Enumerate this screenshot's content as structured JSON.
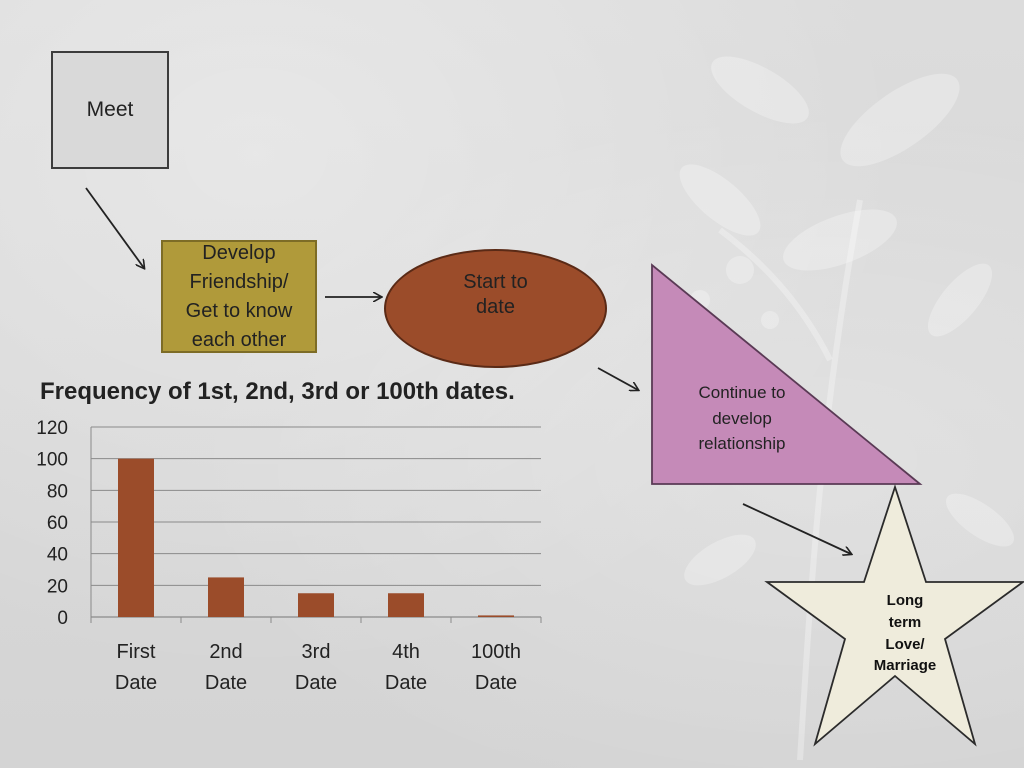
{
  "diagram": {
    "meet": "Meet",
    "friendship": [
      "Develop",
      "Friendship/",
      "Get to know",
      "each other"
    ],
    "start_date": [
      "Start to",
      "date"
    ],
    "continue": [
      "Continue to",
      "develop",
      "relationship"
    ],
    "long_term": [
      "Long",
      "term",
      "Love/",
      "Marriage"
    ]
  },
  "colors": {
    "meet_fill": "#d9d9d9",
    "friendship_fill": "#b09a3a",
    "date_fill": "#9b4c2a",
    "triangle_fill": "#c58ab8",
    "star_fill": "#efecdc",
    "bar_fill": "#9b4c2a"
  },
  "chart_data": {
    "type": "bar",
    "title": "Frequency of 1st, 2nd, 3rd or 100th dates.",
    "categories": [
      [
        "First",
        "Date"
      ],
      [
        "2nd",
        "Date"
      ],
      [
        "3rd",
        "Date"
      ],
      [
        "4th",
        "Date"
      ],
      [
        "100th",
        "Date"
      ]
    ],
    "values": [
      100,
      25,
      15,
      15,
      1
    ],
    "ylim": [
      0,
      120
    ],
    "yticks": [
      0,
      20,
      40,
      60,
      80,
      100,
      120
    ],
    "grid": true,
    "xlabel": "",
    "ylabel": ""
  }
}
